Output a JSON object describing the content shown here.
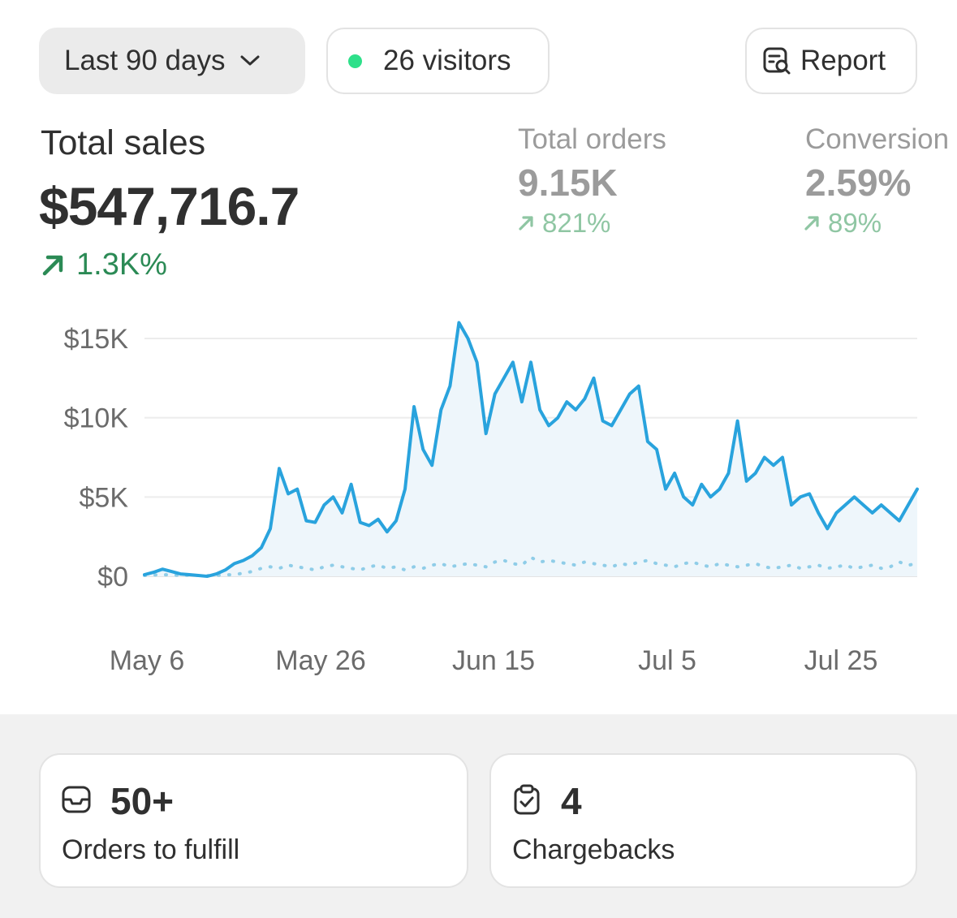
{
  "filters": {
    "date_range": "Last 90 days",
    "visitors": "26 visitors",
    "report": "Report"
  },
  "metrics": {
    "total_sales": {
      "label": "Total sales",
      "value": "$547,716.7",
      "change": "1.3K%"
    },
    "total_orders": {
      "label": "Total orders",
      "value": "9.15K",
      "change": "821%"
    },
    "conversion": {
      "label": "Conversion",
      "value": "2.59%",
      "change": "89%"
    }
  },
  "chart_data": {
    "type": "line",
    "title": "",
    "xlabel": "",
    "ylabel": "",
    "y_ticks": [
      "$15K",
      "$10K",
      "$5K",
      "$0"
    ],
    "x_ticks": [
      "May 6",
      "May 26",
      "Jun 15",
      "Jul 5",
      "Jul 25"
    ],
    "ylim": [
      0,
      15000
    ],
    "grid": true,
    "series": [
      {
        "style": "solid",
        "color": "#29a3dd",
        "values": [
          100,
          250,
          450,
          300,
          150,
          100,
          50,
          0,
          150,
          400,
          800,
          1000,
          1300,
          1800,
          3000,
          6800,
          5200,
          5500,
          3500,
          3400,
          4500,
          5000,
          4000,
          5800,
          3400,
          3200,
          3600,
          2800,
          3500,
          5500,
          10700,
          8000,
          7000,
          10500,
          12000,
          16000,
          15000,
          13500,
          9000,
          11500,
          12500,
          13500,
          11000,
          13500,
          10500,
          9500,
          10000,
          11000,
          10500,
          11200,
          12500,
          9800,
          9500,
          10500,
          11500,
          12000,
          8500,
          8000,
          5500,
          6500,
          5000,
          4500,
          5800,
          5000,
          5500,
          6500,
          9800,
          6000,
          6500,
          7500,
          7000,
          7500,
          4500,
          5000,
          5200,
          4000,
          3000,
          4000,
          4500,
          5000,
          4500,
          4000,
          4500,
          4000,
          3500,
          4500,
          5500
        ]
      },
      {
        "style": "dotted",
        "color": "#8fcde8",
        "values": [
          50,
          80,
          100,
          80,
          60,
          70,
          50,
          40,
          60,
          90,
          100,
          200,
          300,
          500,
          600,
          500,
          700,
          600,
          500,
          400,
          600,
          700,
          600,
          500,
          400,
          600,
          700,
          500,
          600,
          400,
          600,
          500,
          700,
          800,
          600,
          700,
          800,
          700,
          600,
          900,
          1000,
          800,
          700,
          1200,
          900,
          1000,
          900,
          800,
          700,
          900,
          800,
          700,
          600,
          800,
          700,
          900,
          1000,
          800,
          700,
          600,
          800,
          900,
          700,
          600,
          800,
          700,
          600,
          700,
          800,
          600,
          500,
          600,
          700,
          500,
          600,
          700,
          500,
          600,
          700,
          500,
          600,
          700,
          500,
          600,
          900,
          700,
          800
        ]
      }
    ]
  },
  "cards": {
    "orders": {
      "value": "50+",
      "label": "Orders to fulfill"
    },
    "chargebacks": {
      "value": "4",
      "label": "Chargebacks"
    }
  }
}
